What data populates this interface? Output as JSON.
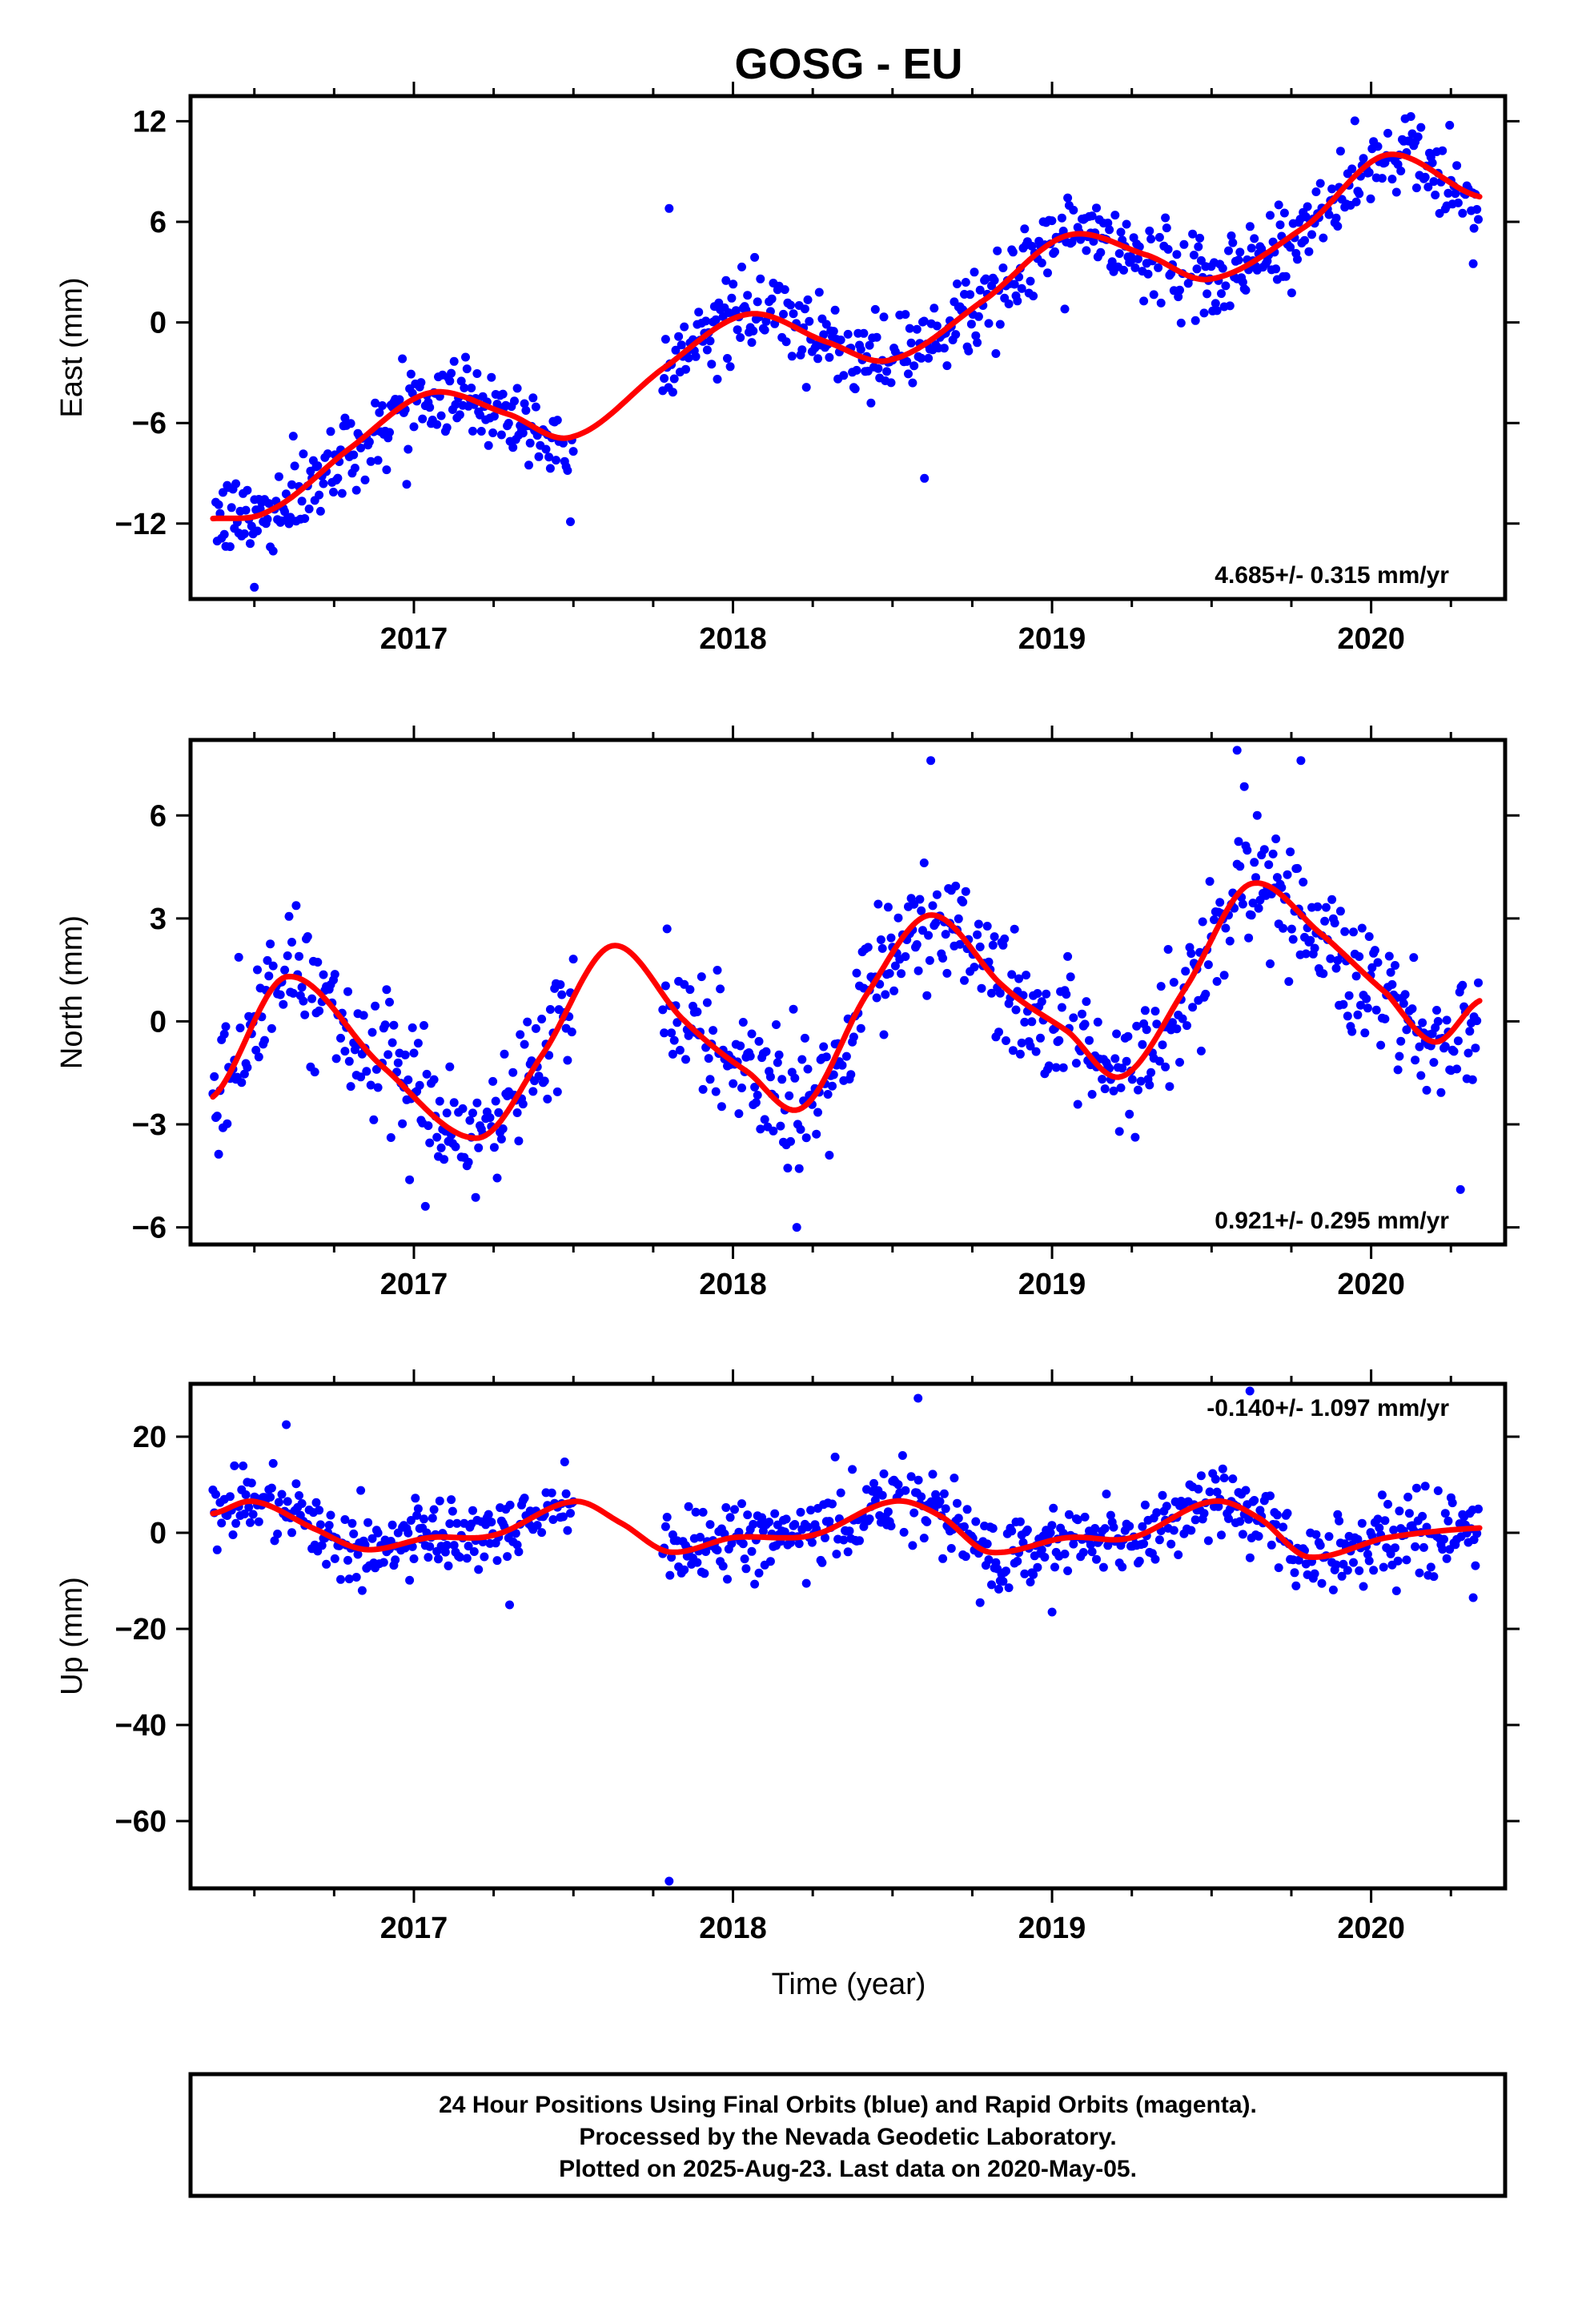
{
  "title": "GOSG - EU",
  "colors": {
    "final_orbits": "#0000ff",
    "fit_line": "#ff0000",
    "frame": "#000000"
  },
  "x_axis": {
    "label": "Time (year)",
    "ticks": [
      "2017",
      "2018",
      "2019",
      "2020"
    ],
    "range": [
      2016.3,
      2020.42
    ]
  },
  "caption": {
    "lines": [
      "24 Hour Positions Using Final Orbits (blue) and Rapid Orbits (magenta).",
      "Processed by the Nevada Geodetic Laboratory.",
      "Plotted on 2025-Aug-23. Last data on 2020-May-05."
    ]
  },
  "chart_data": [
    {
      "type": "scatter",
      "ylabel": "East (mm)",
      "ylim": [
        -16.5,
        13.5
      ],
      "yticks": [
        "12",
        "6",
        "0",
        "-6",
        "-12"
      ],
      "yticks_values": [
        12,
        6,
        0,
        -6,
        -12
      ],
      "rate_label": "4.685+/- 0.315 mm/yr",
      "rate_position": "bottom-right",
      "grid": false,
      "segments": [
        [
          2016.37,
          2017.5
        ],
        [
          2017.78,
          2020.34
        ]
      ],
      "series": [
        {
          "kind": "model",
          "x": [
            2016.37,
            2016.55,
            2016.8,
            2017.05,
            2017.3,
            2017.5,
            2017.8,
            2018.05,
            2018.3,
            2018.5,
            2018.8,
            2019.05,
            2019.3,
            2019.5,
            2019.8,
            2020.05,
            2020.34
          ],
          "values": [
            -11.7,
            -11.2,
            -7.5,
            -4.2,
            -5.5,
            -6.8,
            -2.5,
            0.5,
            -1.2,
            -2.2,
            1.5,
            5.2,
            4.0,
            2.6,
            5.8,
            10.0,
            7.5
          ]
        }
      ],
      "outliers": [
        {
          "x": 2016.5,
          "y": -15.8
        },
        {
          "x": 2017.8,
          "y": 6.8
        },
        {
          "x": 2018.6,
          "y": -9.3
        },
        {
          "x": 2020.32,
          "y": 3.5
        }
      ],
      "scatter": {
        "noise_mm": 1.2,
        "spacing_yr": 0.0045
      }
    },
    {
      "type": "scatter",
      "ylabel": "North (mm)",
      "ylim": [
        -6.5,
        8.2
      ],
      "yticks": [
        "6",
        "3",
        "0",
        "-3",
        "-6"
      ],
      "yticks_values": [
        6,
        3,
        0,
        -3,
        -6
      ],
      "rate_label": "0.921+/- 0.295 mm/yr",
      "rate_position": "bottom-right",
      "grid": false,
      "segments": [
        [
          2016.37,
          2017.5
        ],
        [
          2017.78,
          2020.34
        ]
      ],
      "series": [
        {
          "kind": "model",
          "x": [
            2016.37,
            2016.6,
            2016.9,
            2017.2,
            2017.4,
            2017.62,
            2017.85,
            2018.05,
            2018.22,
            2018.42,
            2018.62,
            2018.85,
            2019.05,
            2019.22,
            2019.42,
            2019.62,
            2019.85,
            2020.05,
            2020.2,
            2020.34
          ],
          "values": [
            -2.2,
            1.3,
            -1.3,
            -3.4,
            -1.0,
            2.2,
            0.0,
            -1.5,
            -2.5,
            0.8,
            3.1,
            1.0,
            -0.3,
            -1.6,
            1.0,
            4.0,
            2.5,
            0.8,
            -0.6,
            0.6
          ]
        }
      ],
      "outliers": [
        {
          "x": 2018.62,
          "y": 7.6
        },
        {
          "x": 2019.58,
          "y": 7.9
        },
        {
          "x": 2019.78,
          "y": 7.6
        },
        {
          "x": 2020.28,
          "y": -4.9
        },
        {
          "x": 2018.2,
          "y": -6.0
        }
      ],
      "scatter": {
        "noise_mm": 0.95,
        "spacing_yr": 0.0045
      }
    },
    {
      "type": "scatter",
      "ylabel": "Up (mm)",
      "ylim": [
        -74,
        31
      ],
      "yticks": [
        "20",
        "0",
        "-20",
        "-40",
        "-60"
      ],
      "yticks_values": [
        20,
        0,
        -20,
        -40,
        -60
      ],
      "rate_label": "-0.140+/- 1.097 mm/yr",
      "rate_position": "top-right",
      "grid": false,
      "segments": [
        [
          2016.37,
          2017.5
        ],
        [
          2017.78,
          2020.34
        ]
      ],
      "series": [
        {
          "kind": "model",
          "x": [
            2016.37,
            2016.5,
            2016.7,
            2016.85,
            2017.05,
            2017.25,
            2017.5,
            2017.65,
            2017.8,
            2018.0,
            2018.25,
            2018.5,
            2018.65,
            2018.8,
            2019.05,
            2019.25,
            2019.5,
            2019.65,
            2019.8,
            2020.05,
            2020.34
          ],
          "values": [
            4.0,
            6.5,
            0.5,
            -3.5,
            -1.0,
            -0.5,
            6.5,
            2.0,
            -4.0,
            -1.0,
            -0.5,
            6.5,
            3.5,
            -4.0,
            -1.0,
            -1.0,
            6.5,
            3.0,
            -5.0,
            -1.0,
            1.0
          ]
        }
      ],
      "outliers": [
        {
          "x": 2017.8,
          "y": -72.5
        },
        {
          "x": 2018.58,
          "y": 28.0
        },
        {
          "x": 2019.62,
          "y": 29.5
        },
        {
          "x": 2016.6,
          "y": 22.5
        },
        {
          "x": 2017.3,
          "y": -15.0
        },
        {
          "x": 2019.0,
          "y": -16.5
        },
        {
          "x": 2020.32,
          "y": -13.5
        }
      ],
      "scatter": {
        "noise_mm": 3.8,
        "spacing_yr": 0.0045
      }
    }
  ]
}
